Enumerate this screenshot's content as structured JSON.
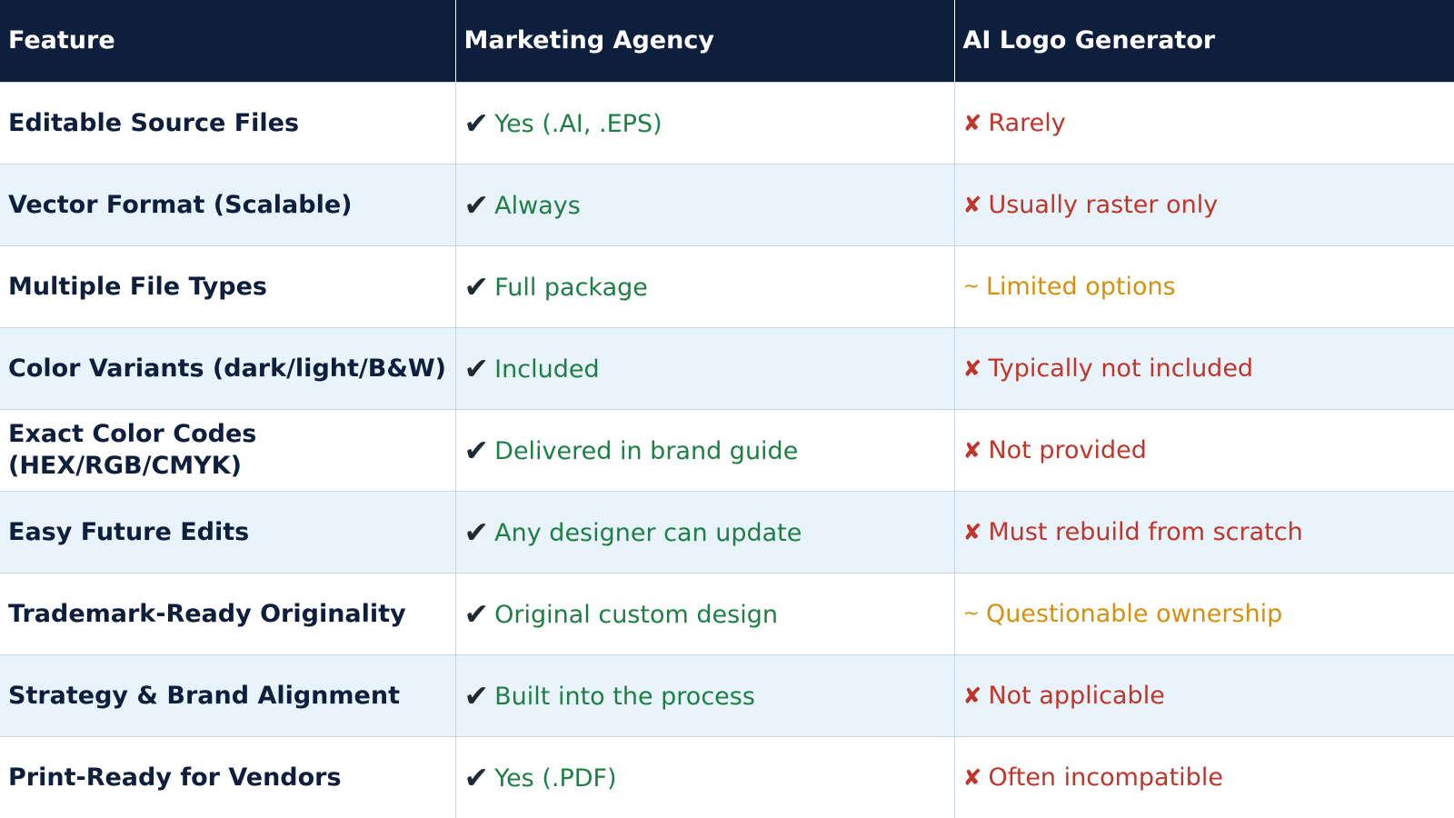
{
  "header": {
    "col1": "Feature",
    "col2": "Marketing Agency",
    "col3": "AI Logo Generator"
  },
  "marks": {
    "check": "✔",
    "cross": "✘",
    "tilde": "~"
  },
  "colors": {
    "header_bg": "#0e1f3e",
    "positive": "#1e7f45",
    "negative": "#c0352b",
    "partial": "#d4900f",
    "alt_row": "#e8f3fb"
  },
  "rows": [
    {
      "feature": "Editable Source Files",
      "agency": "Yes (.AI, .EPS)",
      "ai": "Rarely",
      "ai_status": "negative"
    },
    {
      "feature": "Vector Format (Scalable)",
      "agency": "Always",
      "ai": "Usually raster only",
      "ai_status": "negative"
    },
    {
      "feature": "Multiple File Types",
      "agency": "Full package",
      "ai": "Limited options",
      "ai_status": "partial"
    },
    {
      "feature": "Color Variants (dark/light/B&W)",
      "agency": "Included",
      "ai": "Typically not included",
      "ai_status": "negative"
    },
    {
      "feature": "Exact Color Codes (HEX/RGB/CMYK)",
      "agency": "Delivered in brand guide",
      "ai": "Not provided",
      "ai_status": "negative"
    },
    {
      "feature": "Easy Future Edits",
      "agency": "Any designer can update",
      "ai": "Must rebuild from scratch",
      "ai_status": "negative"
    },
    {
      "feature": "Trademark-Ready Originality",
      "agency": "Original custom design",
      "ai": "Questionable ownership",
      "ai_status": "partial"
    },
    {
      "feature": "Strategy & Brand Alignment",
      "agency": "Built into the process",
      "ai": "Not applicable",
      "ai_status": "negative"
    },
    {
      "feature": "Print-Ready for Vendors",
      "agency": "Yes (.PDF)",
      "ai": "Often incompatible",
      "ai_status": "negative"
    }
  ]
}
